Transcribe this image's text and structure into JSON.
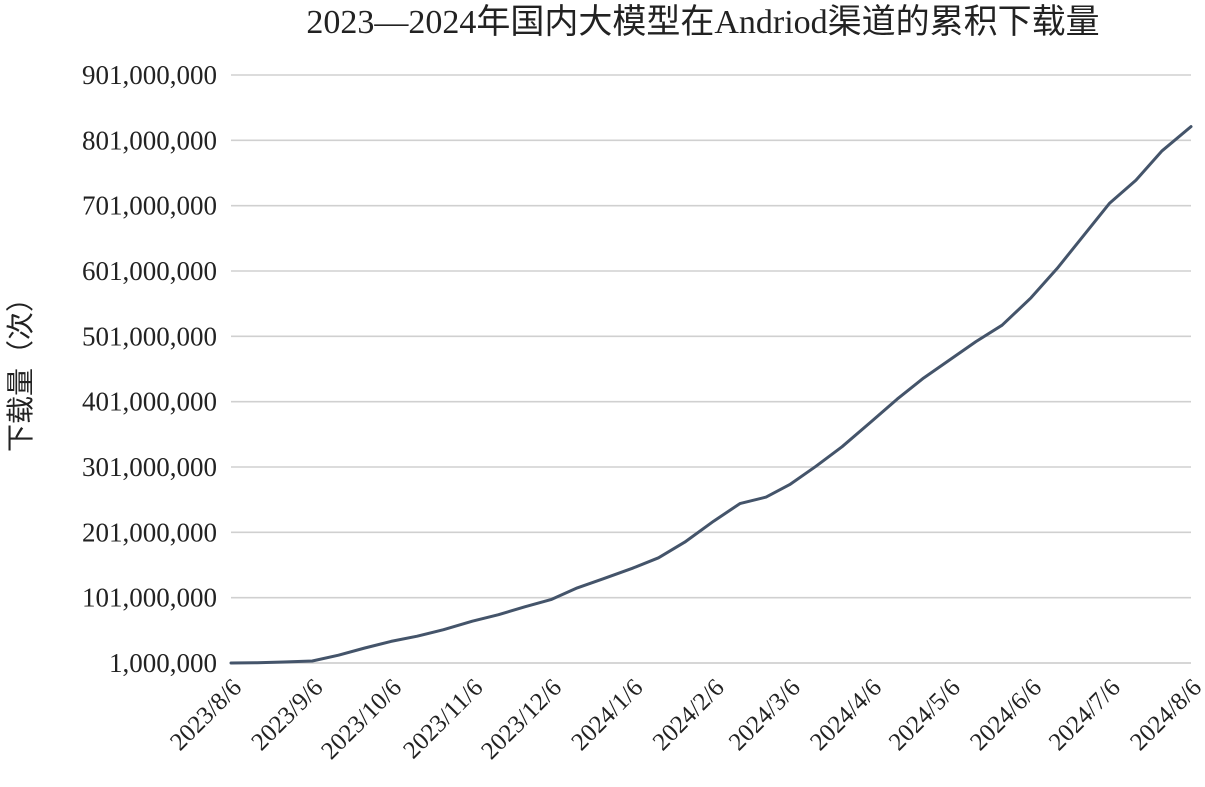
{
  "chart_data": {
    "type": "line",
    "title": "2023—2024年国内大模型在Andriod渠道的累积下载量",
    "xlabel": "",
    "ylabel": "下载量（次）",
    "ylim": [
      1000000,
      901000000
    ],
    "yticks": [
      1000000,
      101000000,
      201000000,
      301000000,
      401000000,
      501000000,
      601000000,
      701000000,
      801000000,
      901000000
    ],
    "ytick_labels": [
      "1,000,000",
      "101,000,000",
      "201,000,000",
      "301,000,000",
      "401,000,000",
      "501,000,000",
      "601,000,000",
      "701,000,000",
      "801,000,000",
      "901,000,000"
    ],
    "xlim": [
      "2023-08-06",
      "2024-08-06"
    ],
    "xticks": [
      "2023-08-06",
      "2023-09-06",
      "2023-10-06",
      "2023-11-06",
      "2023-12-06",
      "2024-01-06",
      "2024-02-06",
      "2024-03-06",
      "2024-04-06",
      "2024-05-06",
      "2024-06-06",
      "2024-07-06",
      "2024-08-06"
    ],
    "xtick_labels": [
      "2023/8/6",
      "2023/9/6",
      "2023/10/6",
      "2023/11/6",
      "2023/12/6",
      "2024/1/6",
      "2024/2/6",
      "2024/3/6",
      "2024/4/6",
      "2024/5/6",
      "2024/6/6",
      "2024/7/6",
      "2024/8/6"
    ],
    "grid": true,
    "legend": "none",
    "series_color": "#44546a",
    "series": [
      {
        "x": [
          "2023-08-06",
          "2023-08-16",
          "2023-08-26",
          "2023-09-06",
          "2023-09-16",
          "2023-09-26",
          "2023-10-06",
          "2023-10-16",
          "2023-10-26",
          "2023-11-06",
          "2023-11-16",
          "2023-11-26",
          "2023-12-06",
          "2023-12-16",
          "2023-12-26",
          "2024-01-06",
          "2024-01-16",
          "2024-01-26",
          "2024-02-06",
          "2024-02-16",
          "2024-02-26",
          "2024-03-06",
          "2024-03-16",
          "2024-03-26",
          "2024-04-06",
          "2024-04-16",
          "2024-04-26",
          "2024-05-06",
          "2024-05-16",
          "2024-05-26",
          "2024-06-06",
          "2024-06-16",
          "2024-06-26",
          "2024-07-06",
          "2024-07-16",
          "2024-07-26",
          "2024-08-06"
        ],
        "values": [
          1000000,
          1500000,
          2500000,
          4000000,
          13000000,
          24000000,
          34000000,
          42000000,
          52000000,
          65000000,
          75000000,
          87000000,
          98000000,
          116000000,
          130000000,
          146000000,
          162000000,
          186000000,
          218000000,
          245000000,
          255000000,
          274000000,
          302000000,
          332000000,
          370000000,
          405000000,
          437000000,
          465000000,
          493000000,
          518000000,
          560000000,
          605000000,
          655000000,
          705000000,
          740000000,
          785000000,
          822000000
        ]
      }
    ]
  }
}
